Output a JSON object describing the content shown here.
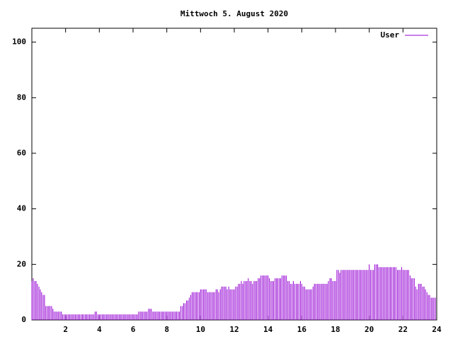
{
  "chart_data": {
    "type": "impulses",
    "title": "Mittwoch 5. August 2020",
    "x": [
      0,
      0.08,
      0.17,
      0.25,
      0.33,
      0.42,
      0.5,
      0.58,
      0.67,
      0.75,
      0.83,
      0.92,
      1,
      1.08,
      1.17,
      1.25,
      1.33,
      1.42,
      1.5,
      1.58,
      1.67,
      1.75,
      1.83,
      1.92,
      2,
      2.08,
      2.17,
      2.25,
      2.33,
      2.42,
      2.5,
      2.58,
      2.67,
      2.75,
      2.83,
      2.92,
      3,
      3.08,
      3.17,
      3.25,
      3.33,
      3.42,
      3.5,
      3.58,
      3.67,
      3.75,
      3.83,
      3.92,
      4,
      4.08,
      4.17,
      4.25,
      4.33,
      4.42,
      4.5,
      4.58,
      4.67,
      4.75,
      4.83,
      4.92,
      5,
      5.08,
      5.17,
      5.25,
      5.33,
      5.42,
      5.5,
      5.58,
      5.67,
      5.75,
      5.83,
      5.92,
      6,
      6.08,
      6.17,
      6.25,
      6.33,
      6.42,
      6.5,
      6.58,
      6.67,
      6.75,
      6.83,
      6.92,
      7,
      7.08,
      7.17,
      7.25,
      7.33,
      7.42,
      7.5,
      7.58,
      7.67,
      7.75,
      7.83,
      7.92,
      8,
      8.08,
      8.17,
      8.25,
      8.33,
      8.42,
      8.5,
      8.58,
      8.67,
      8.75,
      8.83,
      8.92,
      9,
      9.08,
      9.17,
      9.25,
      9.33,
      9.42,
      9.5,
      9.58,
      9.67,
      9.75,
      9.83,
      9.92,
      10,
      10.08,
      10.17,
      10.25,
      10.33,
      10.42,
      10.5,
      10.58,
      10.67,
      10.75,
      10.83,
      10.92,
      11,
      11.08,
      11.17,
      11.25,
      11.33,
      11.42,
      11.5,
      11.58,
      11.67,
      11.75,
      11.83,
      11.92,
      12,
      12.08,
      12.17,
      12.25,
      12.33,
      12.42,
      12.5,
      12.58,
      12.67,
      12.75,
      12.83,
      12.92,
      13,
      13.08,
      13.17,
      13.25,
      13.33,
      13.42,
      13.5,
      13.58,
      13.67,
      13.75,
      13.83,
      13.92,
      14,
      14.08,
      14.17,
      14.25,
      14.33,
      14.42,
      14.5,
      14.58,
      14.67,
      14.75,
      14.83,
      14.92,
      15,
      15.08,
      15.17,
      15.25,
      15.33,
      15.42,
      15.5,
      15.58,
      15.67,
      15.75,
      15.83,
      15.92,
      16,
      16.08,
      16.17,
      16.25,
      16.33,
      16.42,
      16.5,
      16.58,
      16.67,
      16.75,
      16.83,
      16.92,
      17,
      17.08,
      17.17,
      17.25,
      17.33,
      17.42,
      17.5,
      17.58,
      17.67,
      17.75,
      17.83,
      17.92,
      18,
      18.08,
      18.17,
      18.25,
      18.33,
      18.42,
      18.5,
      18.58,
      18.67,
      18.75,
      18.83,
      18.92,
      19,
      19.08,
      19.17,
      19.25,
      19.33,
      19.42,
      19.5,
      19.58,
      19.67,
      19.75,
      19.83,
      19.92,
      20,
      20.08,
      20.17,
      20.25,
      20.33,
      20.42,
      20.5,
      20.58,
      20.67,
      20.75,
      20.83,
      20.92,
      21,
      21.08,
      21.17,
      21.25,
      21.33,
      21.42,
      21.5,
      21.58,
      21.67,
      21.75,
      21.83,
      21.92,
      22,
      22.08,
      22.17,
      22.25,
      22.33,
      22.42,
      22.5,
      22.58,
      22.67,
      22.75,
      22.83,
      22.92,
      23,
      23.08,
      23.17,
      23.25,
      23.33,
      23.42,
      23.5,
      23.58,
      23.67,
      23.75,
      23.83,
      23.92
    ],
    "series": [
      {
        "name": "User",
        "color": "#9400d3",
        "values": [
          14,
          15,
          14,
          14,
          13,
          12,
          11,
          10,
          9,
          9,
          5,
          5,
          5,
          5,
          5,
          4,
          3,
          3,
          3,
          3,
          3,
          3,
          2,
          2,
          2,
          2,
          2,
          2,
          2,
          2,
          2,
          2,
          2,
          2,
          2,
          2,
          2,
          2,
          2,
          2,
          2,
          2,
          2,
          2,
          2,
          3,
          3,
          2,
          2,
          2,
          2,
          2,
          2,
          2,
          2,
          2,
          2,
          2,
          2,
          2,
          2,
          2,
          2,
          2,
          2,
          2,
          2,
          2,
          2,
          2,
          2,
          2,
          2,
          2,
          2,
          2,
          3,
          3,
          3,
          3,
          3,
          3,
          3,
          4,
          4,
          4,
          3,
          3,
          3,
          3,
          3,
          3,
          3,
          3,
          3,
          3,
          3,
          3,
          3,
          3,
          3,
          3,
          3,
          3,
          3,
          3,
          5,
          5,
          6,
          6,
          7,
          7,
          8,
          9,
          10,
          10,
          10,
          10,
          10,
          10,
          11,
          11,
          11,
          11,
          11,
          10,
          10,
          10,
          10,
          10,
          10,
          11,
          11,
          10,
          11,
          12,
          12,
          12,
          12,
          11,
          12,
          11,
          11,
          11,
          11,
          12,
          12,
          13,
          13,
          14,
          13,
          14,
          14,
          14,
          15,
          14,
          14,
          13,
          14,
          14,
          14,
          15,
          15,
          16,
          16,
          16,
          16,
          16,
          16,
          15,
          14,
          14,
          14,
          15,
          15,
          15,
          15,
          15,
          16,
          16,
          16,
          16,
          14,
          14,
          13,
          13,
          14,
          13,
          13,
          13,
          13,
          14,
          13,
          12,
          12,
          11,
          11,
          11,
          11,
          11,
          12,
          13,
          13,
          13,
          13,
          13,
          13,
          13,
          13,
          13,
          13,
          14,
          15,
          15,
          14,
          14,
          14,
          18,
          18,
          17,
          18,
          18,
          18,
          18,
          18,
          18,
          18,
          18,
          18,
          18,
          18,
          18,
          18,
          18,
          18,
          18,
          18,
          18,
          18,
          18,
          20,
          18,
          18,
          18,
          20,
          20,
          20,
          19,
          19,
          19,
          19,
          19,
          19,
          19,
          19,
          19,
          19,
          19,
          19,
          19,
          18,
          18,
          18,
          19,
          18,
          18,
          18,
          18,
          18,
          16,
          15,
          15,
          15,
          12,
          11,
          13,
          13,
          13,
          12,
          12,
          11,
          10,
          9,
          9,
          8,
          8,
          8,
          8
        ]
      }
    ],
    "xlim": [
      0,
      24
    ],
    "xticks": [
      2,
      4,
      6,
      8,
      10,
      12,
      14,
      16,
      18,
      20,
      22,
      24
    ],
    "ylim": [
      0,
      105
    ],
    "yticks": [
      0,
      20,
      40,
      60,
      80,
      100
    ],
    "legend": "top-right"
  }
}
